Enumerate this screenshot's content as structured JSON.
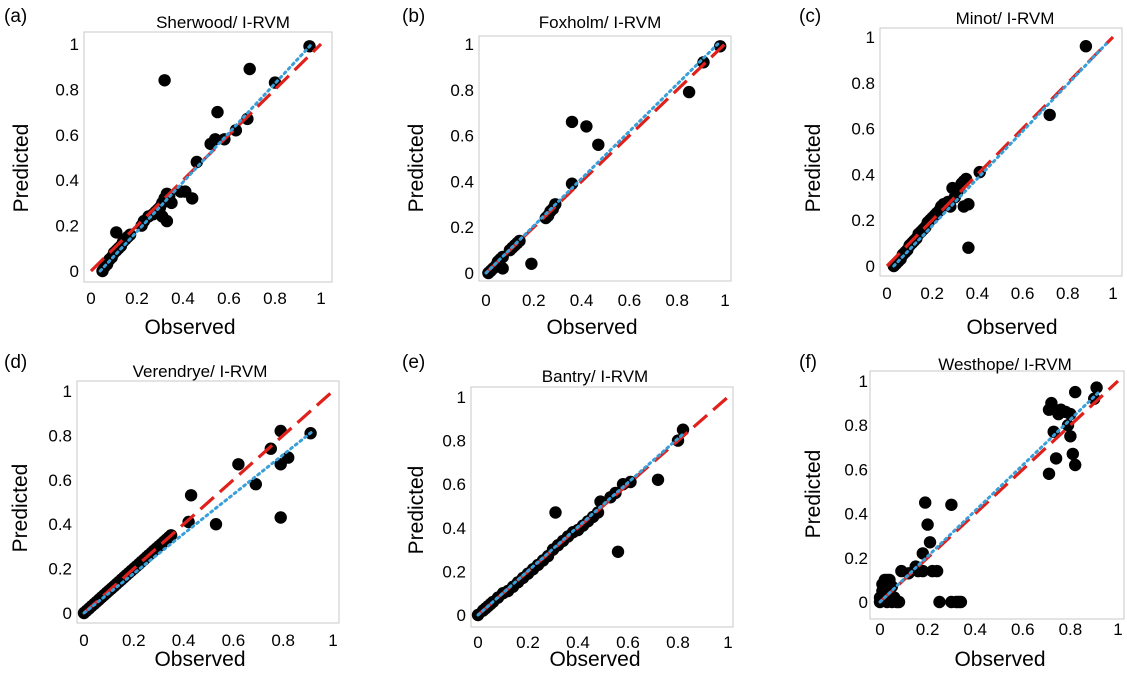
{
  "chart_data": [
    {
      "type": "scatter",
      "panel_label": "(a)",
      "title": "Sherwood/ I-RVM",
      "xlabel": "Observed",
      "ylabel": "Predicted",
      "xlim": [
        0,
        1
      ],
      "ylim": [
        0,
        1
      ],
      "xticks": [
        "0",
        "0.2",
        "0.4",
        "0.6",
        "0.8",
        "1"
      ],
      "yticks": [
        "0",
        "0.2",
        "0.4",
        "0.6",
        "0.8",
        "1"
      ],
      "reference_line": {
        "style": "dashed",
        "color": "#e0201b",
        "from": [
          0,
          0
        ],
        "to": [
          1,
          1
        ]
      },
      "trend_line": {
        "style": "dotted",
        "color": "#3a9fd8",
        "from": [
          0.04,
          0.0
        ],
        "to": [
          0.96,
          1.0
        ]
      },
      "points": [
        [
          0.05,
          0.0
        ],
        [
          0.06,
          0.02
        ],
        [
          0.07,
          0.03
        ],
        [
          0.08,
          0.05
        ],
        [
          0.09,
          0.06
        ],
        [
          0.1,
          0.08
        ],
        [
          0.11,
          0.09
        ],
        [
          0.12,
          0.1
        ],
        [
          0.13,
          0.11
        ],
        [
          0.14,
          0.13
        ],
        [
          0.15,
          0.14
        ],
        [
          0.16,
          0.15
        ],
        [
          0.17,
          0.16
        ],
        [
          0.11,
          0.17
        ],
        [
          0.22,
          0.2
        ],
        [
          0.23,
          0.22
        ],
        [
          0.25,
          0.24
        ],
        [
          0.27,
          0.25
        ],
        [
          0.28,
          0.26
        ],
        [
          0.29,
          0.27
        ],
        [
          0.3,
          0.28
        ],
        [
          0.31,
          0.3
        ],
        [
          0.32,
          0.32
        ],
        [
          0.33,
          0.34
        ],
        [
          0.34,
          0.33
        ],
        [
          0.35,
          0.3
        ],
        [
          0.31,
          0.24
        ],
        [
          0.33,
          0.22
        ],
        [
          0.39,
          0.35
        ],
        [
          0.41,
          0.35
        ],
        [
          0.44,
          0.32
        ],
        [
          0.46,
          0.48
        ],
        [
          0.52,
          0.56
        ],
        [
          0.54,
          0.58
        ],
        [
          0.58,
          0.58
        ],
        [
          0.55,
          0.7
        ],
        [
          0.63,
          0.62
        ],
        [
          0.68,
          0.67
        ],
        [
          0.69,
          0.89
        ],
        [
          0.8,
          0.83
        ],
        [
          0.95,
          0.99
        ],
        [
          0.32,
          0.84
        ]
      ]
    },
    {
      "type": "scatter",
      "panel_label": "(b)",
      "title": "Foxholm/ I-RVM",
      "xlabel": "Observed",
      "ylabel": "Predicted",
      "xlim": [
        0,
        1
      ],
      "ylim": [
        0,
        1
      ],
      "xticks": [
        "0",
        "0.2",
        "0.4",
        "0.6",
        "0.8",
        "1"
      ],
      "yticks": [
        "0",
        "0.2",
        "0.4",
        "0.6",
        "0.8",
        "1"
      ],
      "reference_line": {
        "style": "dashed",
        "color": "#e0201b",
        "from": [
          0,
          0
        ],
        "to": [
          1,
          1
        ]
      },
      "trend_line": {
        "style": "dotted",
        "color": "#3a9fd8",
        "from": [
          0.0,
          0.0
        ],
        "to": [
          0.97,
          1.0
        ]
      },
      "points": [
        [
          0.01,
          0.0
        ],
        [
          0.02,
          0.01
        ],
        [
          0.03,
          0.02
        ],
        [
          0.04,
          0.03
        ],
        [
          0.05,
          0.05
        ],
        [
          0.06,
          0.06
        ],
        [
          0.07,
          0.07
        ],
        [
          0.07,
          0.02
        ],
        [
          0.1,
          0.1
        ],
        [
          0.11,
          0.11
        ],
        [
          0.12,
          0.12
        ],
        [
          0.13,
          0.13
        ],
        [
          0.14,
          0.14
        ],
        [
          0.19,
          0.04
        ],
        [
          0.25,
          0.24
        ],
        [
          0.26,
          0.25
        ],
        [
          0.27,
          0.27
        ],
        [
          0.28,
          0.28
        ],
        [
          0.29,
          0.3
        ],
        [
          0.36,
          0.39
        ],
        [
          0.36,
          0.66
        ],
        [
          0.42,
          0.64
        ],
        [
          0.47,
          0.56
        ],
        [
          0.85,
          0.79
        ],
        [
          0.91,
          0.92
        ],
        [
          0.98,
          0.99
        ]
      ]
    },
    {
      "type": "scatter",
      "panel_label": "(c)",
      "title": "Minot/ I-RVM",
      "xlabel": "Observed",
      "ylabel": "Predicted",
      "xlim": [
        0,
        1
      ],
      "ylim": [
        0,
        1
      ],
      "xticks": [
        "0",
        "0.2",
        "0.4",
        "0.6",
        "0.8",
        "1"
      ],
      "yticks": [
        "0",
        "0.2",
        "0.4",
        "0.6",
        "0.8",
        "1"
      ],
      "reference_line": {
        "style": "dashed",
        "color": "#e0201b",
        "from": [
          0,
          0
        ],
        "to": [
          1,
          1
        ]
      },
      "trend_line": {
        "style": "dotted",
        "color": "#3a9fd8",
        "from": [
          0.03,
          0.0
        ],
        "to": [
          0.97,
          0.97
        ]
      },
      "points": [
        [
          0.03,
          0.0
        ],
        [
          0.04,
          0.01
        ],
        [
          0.05,
          0.02
        ],
        [
          0.06,
          0.03
        ],
        [
          0.07,
          0.05
        ],
        [
          0.08,
          0.06
        ],
        [
          0.09,
          0.07
        ],
        [
          0.1,
          0.09
        ],
        [
          0.11,
          0.1
        ],
        [
          0.12,
          0.11
        ],
        [
          0.13,
          0.12
        ],
        [
          0.14,
          0.14
        ],
        [
          0.15,
          0.15
        ],
        [
          0.16,
          0.16
        ],
        [
          0.17,
          0.17
        ],
        [
          0.18,
          0.19
        ],
        [
          0.19,
          0.2
        ],
        [
          0.2,
          0.21
        ],
        [
          0.21,
          0.22
        ],
        [
          0.22,
          0.23
        ],
        [
          0.23,
          0.24
        ],
        [
          0.24,
          0.26
        ],
        [
          0.25,
          0.27
        ],
        [
          0.27,
          0.28
        ],
        [
          0.28,
          0.26
        ],
        [
          0.29,
          0.34
        ],
        [
          0.3,
          0.3
        ],
        [
          0.31,
          0.32
        ],
        [
          0.32,
          0.34
        ],
        [
          0.33,
          0.36
        ],
        [
          0.34,
          0.37
        ],
        [
          0.35,
          0.38
        ],
        [
          0.36,
          0.27
        ],
        [
          0.34,
          0.26
        ],
        [
          0.36,
          0.08
        ],
        [
          0.41,
          0.41
        ],
        [
          0.72,
          0.66
        ],
        [
          0.88,
          0.96
        ]
      ]
    },
    {
      "type": "scatter",
      "panel_label": "(d)",
      "title": "Verendrye/ I-RVM",
      "xlabel": "Observed",
      "ylabel": "Predicted",
      "xlim": [
        0,
        1
      ],
      "ylim": [
        0,
        1
      ],
      "xticks": [
        "0",
        "0.2",
        "0.4",
        "0.6",
        "0.8",
        "1"
      ],
      "yticks": [
        "0",
        "0.2",
        "0.4",
        "0.6",
        "0.8",
        "1"
      ],
      "reference_line": {
        "style": "dashed",
        "color": "#e0201b",
        "from": [
          0,
          0
        ],
        "to": [
          1,
          1
        ]
      },
      "trend_line": {
        "style": "dotted",
        "color": "#3a9fd8",
        "from": [
          0.0,
          0.0
        ],
        "to": [
          0.92,
          0.82
        ]
      },
      "points": [
        [
          0.0,
          0.0
        ],
        [
          0.01,
          0.01
        ],
        [
          0.02,
          0.02
        ],
        [
          0.03,
          0.03
        ],
        [
          0.04,
          0.04
        ],
        [
          0.05,
          0.05
        ],
        [
          0.06,
          0.06
        ],
        [
          0.07,
          0.07
        ],
        [
          0.08,
          0.08
        ],
        [
          0.09,
          0.09
        ],
        [
          0.1,
          0.1
        ],
        [
          0.11,
          0.11
        ],
        [
          0.12,
          0.12
        ],
        [
          0.13,
          0.13
        ],
        [
          0.14,
          0.14
        ],
        [
          0.15,
          0.15
        ],
        [
          0.16,
          0.16
        ],
        [
          0.17,
          0.17
        ],
        [
          0.18,
          0.18
        ],
        [
          0.19,
          0.19
        ],
        [
          0.2,
          0.2
        ],
        [
          0.21,
          0.21
        ],
        [
          0.22,
          0.22
        ],
        [
          0.23,
          0.23
        ],
        [
          0.24,
          0.24
        ],
        [
          0.25,
          0.25
        ],
        [
          0.26,
          0.26
        ],
        [
          0.27,
          0.27
        ],
        [
          0.28,
          0.28
        ],
        [
          0.29,
          0.29
        ],
        [
          0.3,
          0.3
        ],
        [
          0.31,
          0.31
        ],
        [
          0.32,
          0.32
        ],
        [
          0.33,
          0.33
        ],
        [
          0.34,
          0.34
        ],
        [
          0.35,
          0.35
        ],
        [
          0.42,
          0.41
        ],
        [
          0.43,
          0.53
        ],
        [
          0.53,
          0.4
        ],
        [
          0.62,
          0.67
        ],
        [
          0.69,
          0.58
        ],
        [
          0.75,
          0.74
        ],
        [
          0.79,
          0.82
        ],
        [
          0.79,
          0.67
        ],
        [
          0.79,
          0.43
        ],
        [
          0.82,
          0.7
        ],
        [
          0.91,
          0.81
        ]
      ]
    },
    {
      "type": "scatter",
      "panel_label": "(e)",
      "title": "Bantry/ I-RVM",
      "xlabel": "Observed",
      "ylabel": "Predicted",
      "xlim": [
        0,
        1
      ],
      "ylim": [
        0,
        1
      ],
      "xticks": [
        "0",
        "0.2",
        "0.4",
        "0.6",
        "0.8",
        "1"
      ],
      "yticks": [
        "0",
        "0.2",
        "0.4",
        "0.6",
        "0.8",
        "1"
      ],
      "reference_line": {
        "style": "dashed",
        "color": "#e0201b",
        "from": [
          0,
          0
        ],
        "to": [
          1,
          1
        ]
      },
      "trend_line": {
        "style": "dotted",
        "color": "#3a9fd8",
        "from": [
          0.0,
          0.0
        ],
        "to": [
          0.82,
          0.83
        ]
      },
      "points": [
        [
          0.0,
          0.0
        ],
        [
          0.02,
          0.02
        ],
        [
          0.03,
          0.03
        ],
        [
          0.04,
          0.04
        ],
        [
          0.05,
          0.05
        ],
        [
          0.06,
          0.06
        ],
        [
          0.08,
          0.08
        ],
        [
          0.1,
          0.1
        ],
        [
          0.12,
          0.11
        ],
        [
          0.14,
          0.13
        ],
        [
          0.16,
          0.15
        ],
        [
          0.18,
          0.17
        ],
        [
          0.2,
          0.19
        ],
        [
          0.22,
          0.21
        ],
        [
          0.24,
          0.23
        ],
        [
          0.26,
          0.25
        ],
        [
          0.28,
          0.27
        ],
        [
          0.3,
          0.3
        ],
        [
          0.31,
          0.47
        ],
        [
          0.32,
          0.32
        ],
        [
          0.34,
          0.34
        ],
        [
          0.36,
          0.36
        ],
        [
          0.38,
          0.38
        ],
        [
          0.4,
          0.39
        ],
        [
          0.42,
          0.41
        ],
        [
          0.44,
          0.43
        ],
        [
          0.46,
          0.45
        ],
        [
          0.48,
          0.47
        ],
        [
          0.49,
          0.52
        ],
        [
          0.53,
          0.54
        ],
        [
          0.55,
          0.56
        ],
        [
          0.56,
          0.29
        ],
        [
          0.58,
          0.6
        ],
        [
          0.61,
          0.61
        ],
        [
          0.72,
          0.62
        ],
        [
          0.8,
          0.8
        ],
        [
          0.82,
          0.85
        ]
      ]
    },
    {
      "type": "scatter",
      "panel_label": "(f)",
      "title": "Westhope/ I-RVM",
      "xlabel": "Observed",
      "ylabel": "Predicted",
      "xlim": [
        0,
        1
      ],
      "ylim": [
        0,
        1
      ],
      "xticks": [
        "0",
        "0.2",
        "0.4",
        "0.6",
        "0.8",
        "1"
      ],
      "yticks": [
        "0",
        "0.2",
        "0.4",
        "0.6",
        "0.8",
        "1"
      ],
      "reference_line": {
        "style": "dashed",
        "color": "#e0201b",
        "from": [
          0,
          0
        ],
        "to": [
          1,
          1
        ]
      },
      "trend_line": {
        "style": "dotted",
        "color": "#3a9fd8",
        "from": [
          0.0,
          0.0
        ],
        "to": [
          0.92,
          0.95
        ]
      },
      "points": [
        [
          0.0,
          0.0
        ],
        [
          0.0,
          0.02
        ],
        [
          0.01,
          0.05
        ],
        [
          0.01,
          0.08
        ],
        [
          0.02,
          0.1
        ],
        [
          0.03,
          0.1
        ],
        [
          0.04,
          0.1
        ],
        [
          0.05,
          0.07
        ],
        [
          0.06,
          0.02
        ],
        [
          0.07,
          0.0
        ],
        [
          0.08,
          0.0
        ],
        [
          0.09,
          0.14
        ],
        [
          0.03,
          0.0
        ],
        [
          0.05,
          0.0
        ],
        [
          0.12,
          0.13
        ],
        [
          0.15,
          0.16
        ],
        [
          0.16,
          0.14
        ],
        [
          0.18,
          0.14
        ],
        [
          0.18,
          0.22
        ],
        [
          0.19,
          0.45
        ],
        [
          0.2,
          0.35
        ],
        [
          0.21,
          0.27
        ],
        [
          0.22,
          0.14
        ],
        [
          0.24,
          0.14
        ],
        [
          0.25,
          0.0
        ],
        [
          0.3,
          0.44
        ],
        [
          0.3,
          0.0
        ],
        [
          0.32,
          0.0
        ],
        [
          0.33,
          0.0
        ],
        [
          0.34,
          0.0
        ],
        [
          0.71,
          0.87
        ],
        [
          0.72,
          0.9
        ],
        [
          0.71,
          0.58
        ],
        [
          0.73,
          0.77
        ],
        [
          0.74,
          0.65
        ],
        [
          0.75,
          0.85
        ],
        [
          0.76,
          0.87
        ],
        [
          0.78,
          0.86
        ],
        [
          0.79,
          0.8
        ],
        [
          0.8,
          0.85
        ],
        [
          0.81,
          0.67
        ],
        [
          0.82,
          0.62
        ],
        [
          0.82,
          0.95
        ],
        [
          0.8,
          0.75
        ],
        [
          0.9,
          0.92
        ],
        [
          0.91,
          0.97
        ]
      ]
    }
  ]
}
